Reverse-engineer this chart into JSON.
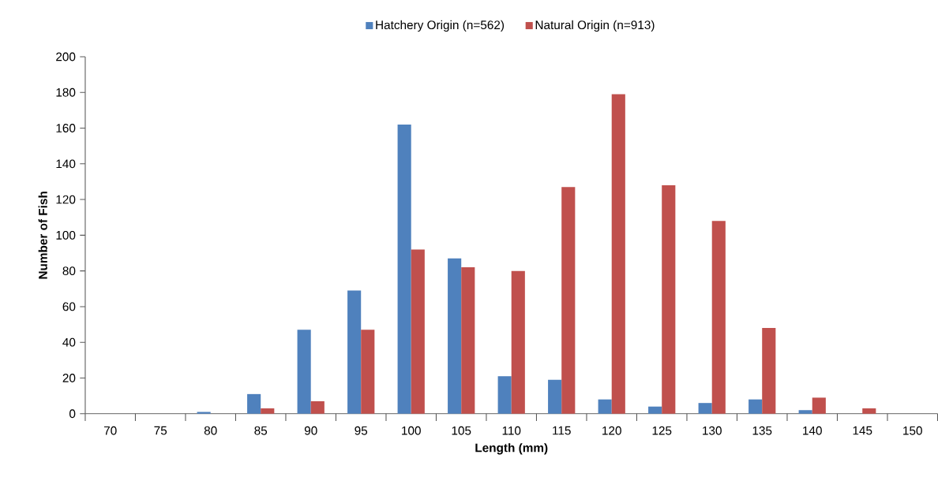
{
  "chart_data": {
    "type": "bar",
    "xlabel": "Length (mm)",
    "ylabel": "Number of Fish",
    "categories": [
      "70",
      "75",
      "80",
      "85",
      "90",
      "95",
      "100",
      "105",
      "110",
      "115",
      "120",
      "125",
      "130",
      "135",
      "140",
      "145",
      "150"
    ],
    "series": [
      {
        "name": "Hatchery Origin (n=562)",
        "color": "#4f81bd",
        "values": [
          0,
          0,
          1,
          11,
          47,
          69,
          162,
          87,
          21,
          19,
          8,
          4,
          6,
          8,
          2,
          0,
          0
        ]
      },
      {
        "name": "Natural Origin (n=913)",
        "color": "#c0504d",
        "values": [
          0,
          0,
          0,
          3,
          7,
          47,
          92,
          82,
          80,
          127,
          179,
          128,
          108,
          48,
          9,
          3,
          0
        ]
      }
    ],
    "ylim": [
      0,
      200
    ],
    "yticks": [
      0,
      20,
      40,
      60,
      80,
      100,
      120,
      140,
      160,
      180,
      200
    ],
    "legend": "top"
  }
}
